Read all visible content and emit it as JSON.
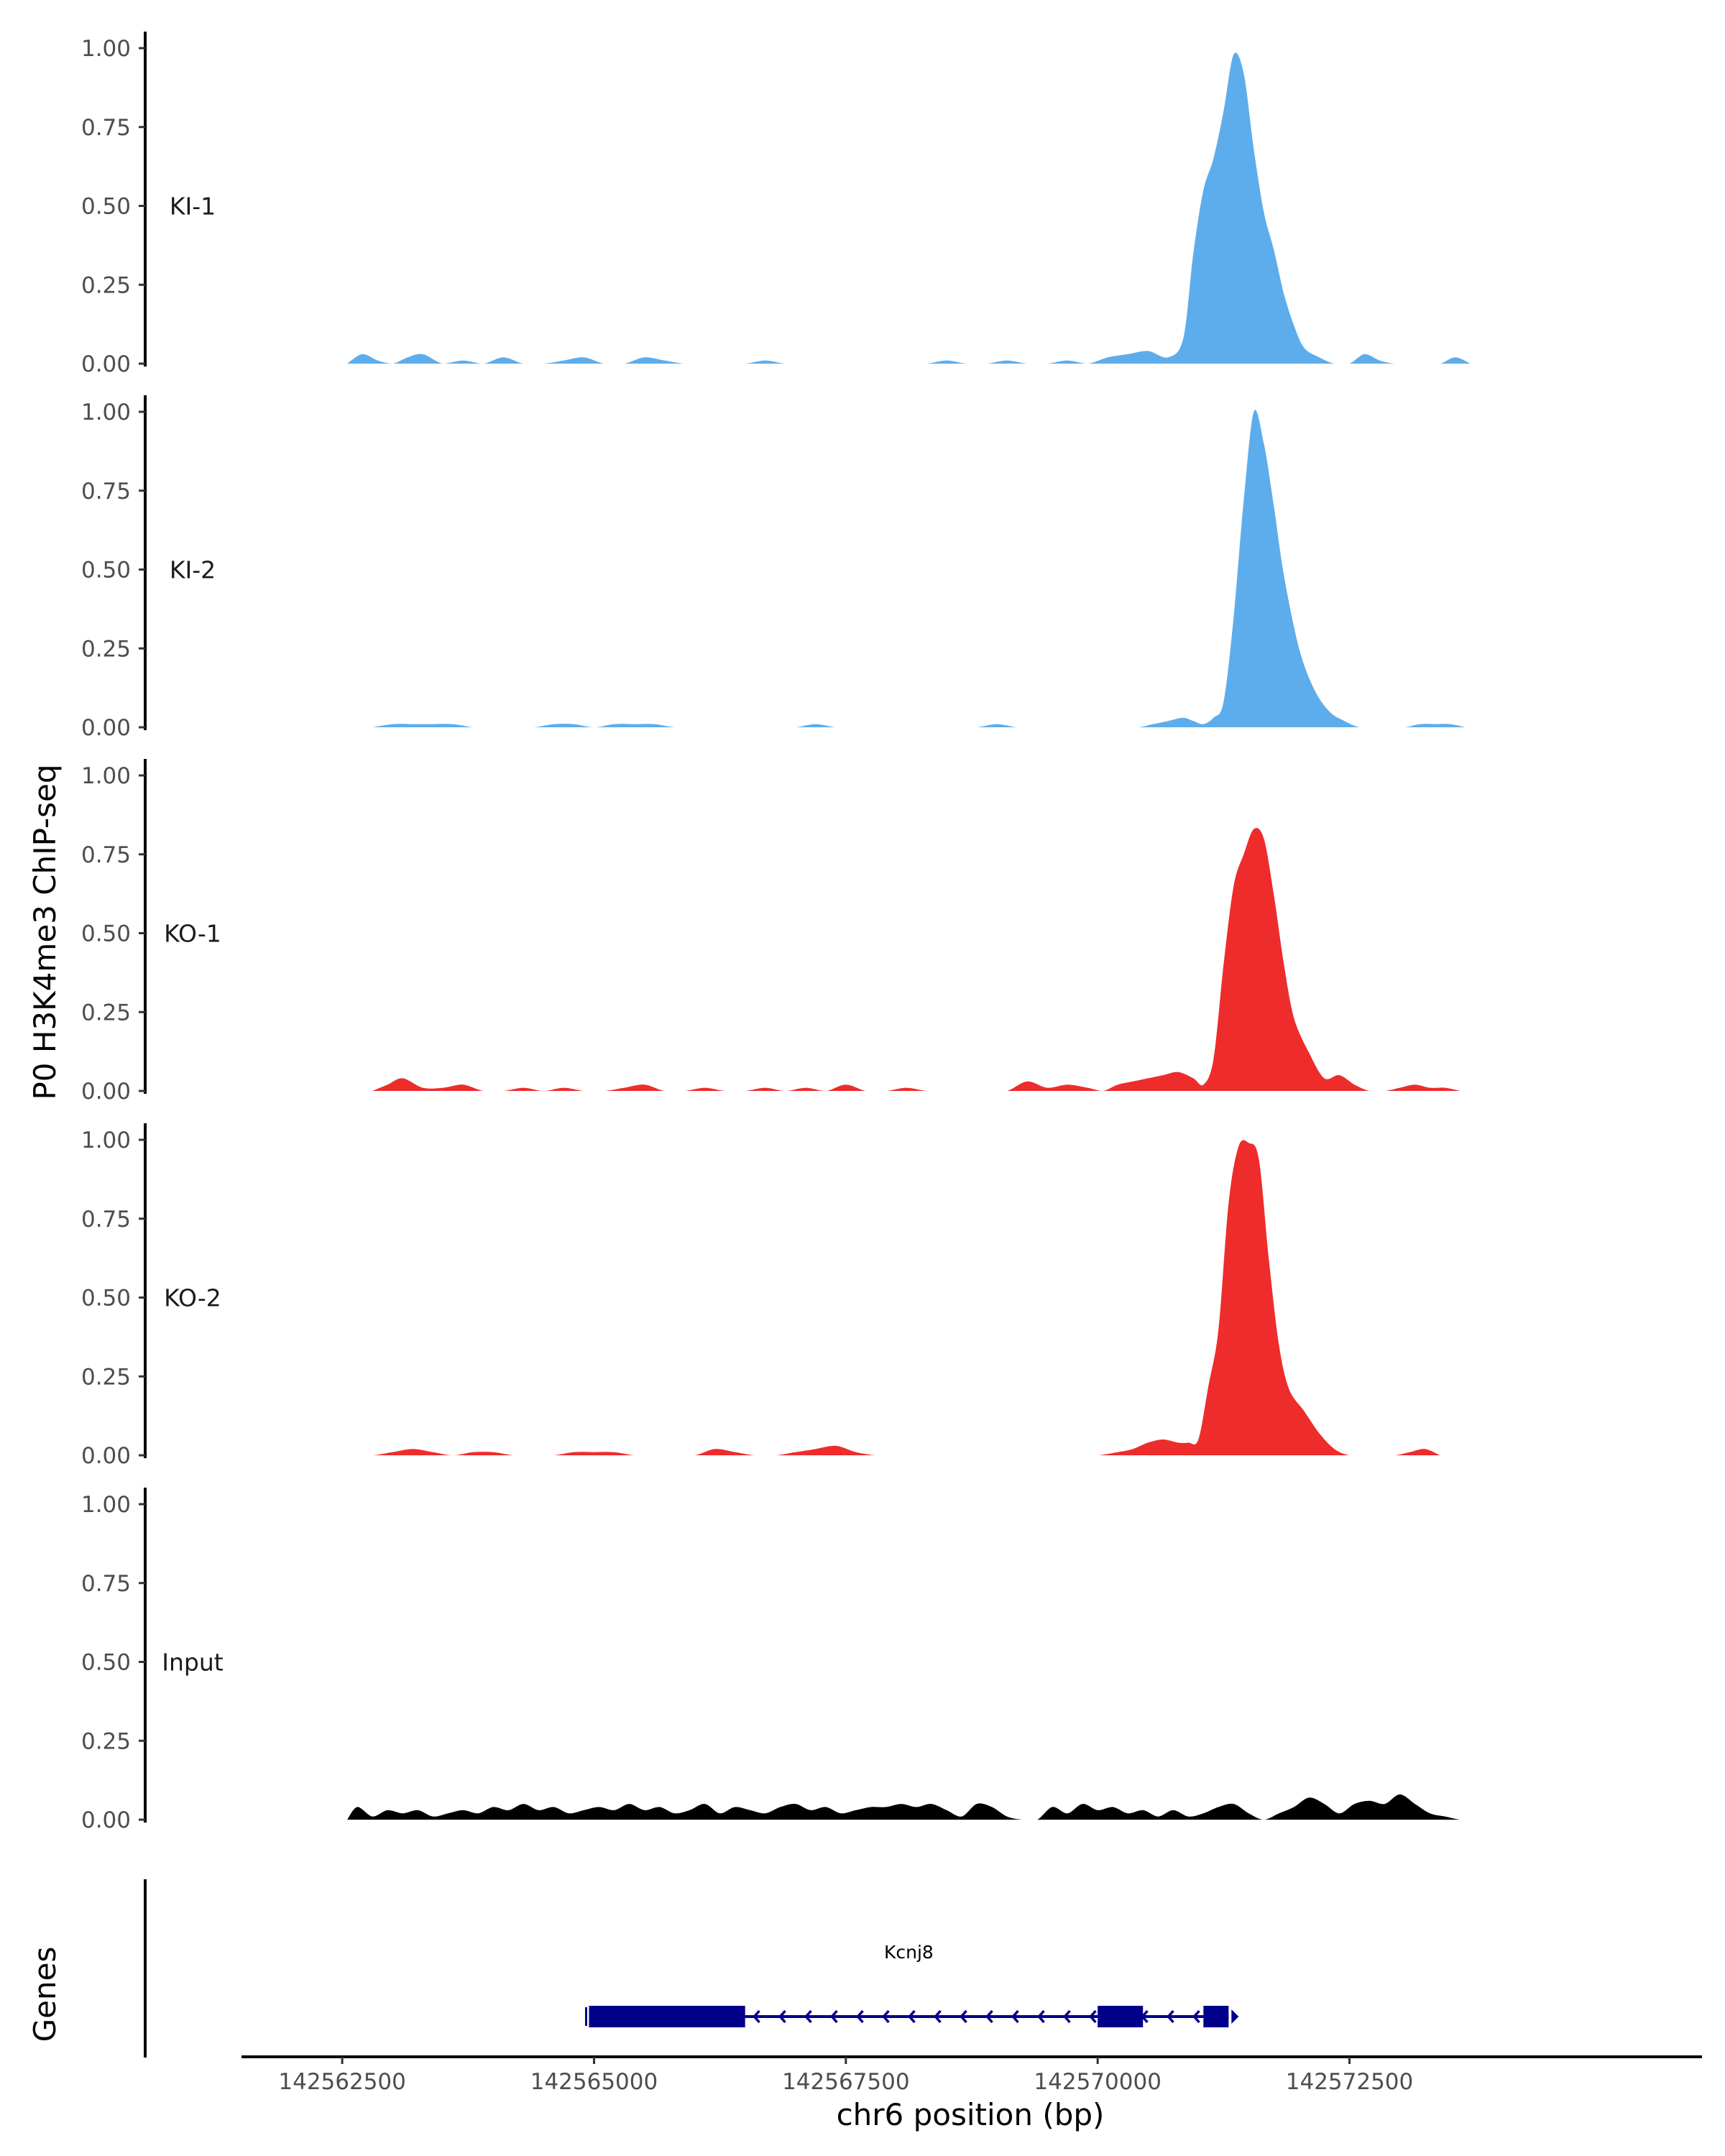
{
  "chart_data": {
    "type": "area",
    "ylabel": "P0 H3K4me3 ChIP-seq",
    "xlabel": "chr6 position (bp)",
    "genes_label": "Genes",
    "xlim": [
      142561500,
      142576000
    ],
    "x_ticks": [
      142562500,
      142565000,
      142567500,
      142570000,
      142572500
    ],
    "y_ticks": [
      "0.00",
      "0.25",
      "0.50",
      "0.75",
      "1.00"
    ],
    "ylim": [
      0,
      1
    ],
    "colors": {
      "KI": "#5DADEC",
      "KO": "#EE2C2C",
      "Input": "#000000",
      "gene": "#00008B"
    },
    "tracks": [
      {
        "name": "KI-1",
        "color": "#5DADEC",
        "x": [
          142562550,
          142562700,
          142562850,
          142563000,
          142563150,
          142563300,
          142563500,
          142563700,
          142563900,
          142564100,
          142564300,
          142564500,
          142564700,
          142564900,
          142565100,
          142565300,
          142565500,
          142565700,
          142565900,
          142566100,
          142566300,
          142566500,
          142566700,
          142566900,
          142567100,
          142567300,
          142567500,
          142567700,
          142567900,
          142568100,
          142568300,
          142568500,
          142568700,
          142568900,
          142569100,
          142569300,
          142569500,
          142569700,
          142569900,
          142570100,
          142570300,
          142570500,
          142570700,
          142570850,
          142570950,
          142571050,
          142571150,
          142571250,
          142571350,
          142571450,
          142571550,
          142571650,
          142571750,
          142571850,
          142571950,
          142572050,
          142572200,
          142572350,
          142572500,
          142572650,
          142572800,
          142572950,
          142573100,
          142573250,
          142573400,
          142573550,
          142573700
        ],
        "y": [
          0.0,
          0.03,
          0.01,
          0.0,
          0.02,
          0.03,
          0.0,
          0.01,
          0.0,
          0.02,
          0.0,
          0.0,
          0.01,
          0.02,
          0.0,
          0.0,
          0.02,
          0.01,
          0.0,
          0.0,
          0.0,
          0.0,
          0.01,
          0.0,
          0.0,
          0.0,
          0.0,
          0.0,
          0.0,
          0.0,
          0.0,
          0.01,
          0.0,
          0.0,
          0.01,
          0.0,
          0.0,
          0.01,
          0.0,
          0.02,
          0.03,
          0.04,
          0.02,
          0.08,
          0.35,
          0.55,
          0.65,
          0.8,
          0.98,
          0.92,
          0.68,
          0.48,
          0.36,
          0.22,
          0.12,
          0.05,
          0.02,
          0.0,
          0.0,
          0.03,
          0.01,
          0.0,
          0.0,
          0.0,
          0.0,
          0.02,
          0.0
        ]
      },
      {
        "name": "KI-2",
        "color": "#5DADEC",
        "x": [
          142562800,
          142563000,
          142563200,
          142563400,
          142563600,
          142563800,
          142564000,
          142564200,
          142564400,
          142564600,
          142564800,
          142565000,
          142565200,
          142565400,
          142565600,
          142565800,
          142566000,
          142566200,
          142566400,
          142566600,
          142566800,
          142567000,
          142567200,
          142567400,
          142567600,
          142567800,
          142568000,
          142568200,
          142568400,
          142568600,
          142568800,
          142569000,
          142569200,
          142569400,
          142569600,
          142569800,
          142570000,
          142570200,
          142570400,
          142570550,
          142570700,
          142570850,
          142570950,
          142571050,
          142571150,
          142571250,
          142571350,
          142571450,
          142571550,
          142571650,
          142571750,
          142571850,
          142572000,
          142572150,
          142572300,
          142572450,
          142572600,
          142572750,
          142572900,
          142573050,
          142573200,
          142573350,
          142573500,
          142573650
        ],
        "y": [
          0.0,
          0.01,
          0.01,
          0.01,
          0.01,
          0.0,
          0.0,
          0.0,
          0.0,
          0.01,
          0.01,
          0.0,
          0.01,
          0.01,
          0.01,
          0.0,
          0.0,
          0.0,
          0.0,
          0.0,
          0.0,
          0.0,
          0.01,
          0.0,
          0.0,
          0.0,
          0.0,
          0.0,
          0.0,
          0.0,
          0.0,
          0.01,
          0.0,
          0.0,
          0.0,
          0.0,
          0.0,
          0.0,
          0.0,
          0.01,
          0.02,
          0.03,
          0.02,
          0.01,
          0.03,
          0.08,
          0.35,
          0.72,
          1.0,
          0.9,
          0.7,
          0.48,
          0.25,
          0.12,
          0.05,
          0.02,
          0.0,
          0.0,
          0.0,
          0.0,
          0.01,
          0.01,
          0.01,
          0.0
        ]
      },
      {
        "name": "KO-1",
        "color": "#EE2C2C",
        "x": [
          142562800,
          142562950,
          142563100,
          142563300,
          142563500,
          142563700,
          142563900,
          142564100,
          142564300,
          142564500,
          142564700,
          142564900,
          142565100,
          142565300,
          142565500,
          142565700,
          142565900,
          142566100,
          142566300,
          142566500,
          142566700,
          142566900,
          142567100,
          142567300,
          142567500,
          142567700,
          142567900,
          142568100,
          142568300,
          142568500,
          142568700,
          142568900,
          142569100,
          142569300,
          142569500,
          142569700,
          142569900,
          142570050,
          142570200,
          142570350,
          142570500,
          142570650,
          142570800,
          142570950,
          142571050,
          142571150,
          142571250,
          142571350,
          142571450,
          142571550,
          142571650,
          142571750,
          142571850,
          142571950,
          142572100,
          142572250,
          142572400,
          142572550,
          142572700,
          142572850,
          142573000,
          142573150,
          142573300,
          142573450,
          142573600
        ],
        "y": [
          0.0,
          0.02,
          0.04,
          0.01,
          0.01,
          0.02,
          0.0,
          0.0,
          0.01,
          0.0,
          0.01,
          0.0,
          0.0,
          0.01,
          0.02,
          0.0,
          0.0,
          0.01,
          0.0,
          0.0,
          0.01,
          0.0,
          0.01,
          0.0,
          0.02,
          0.0,
          0.0,
          0.01,
          0.0,
          0.0,
          0.0,
          0.0,
          0.0,
          0.03,
          0.01,
          0.02,
          0.01,
          0.0,
          0.02,
          0.03,
          0.04,
          0.05,
          0.06,
          0.04,
          0.02,
          0.1,
          0.4,
          0.65,
          0.75,
          0.83,
          0.8,
          0.62,
          0.4,
          0.23,
          0.12,
          0.04,
          0.05,
          0.02,
          0.0,
          0.0,
          0.01,
          0.02,
          0.01,
          0.01,
          0.0
        ]
      },
      {
        "name": "KO-2",
        "color": "#EE2C2C",
        "x": [
          142562600,
          142562800,
          142563000,
          142563200,
          142563400,
          142563600,
          142563800,
          142564000,
          142564200,
          142564400,
          142564600,
          142564800,
          142565000,
          142565200,
          142565400,
          142565600,
          142565800,
          142566000,
          142566200,
          142566400,
          142566600,
          142566800,
          142567000,
          142567200,
          142567400,
          142567600,
          142567800,
          142568000,
          142568200,
          142568400,
          142568600,
          142568800,
          142569000,
          142569200,
          142569400,
          142569600,
          142569800,
          142570000,
          142570200,
          142570350,
          142570500,
          142570650,
          142570800,
          142570900,
          142571000,
          142571100,
          142571200,
          142571300,
          142571400,
          142571500,
          142571600,
          142571700,
          142571800,
          142571900,
          142572050,
          142572200,
          142572350,
          142572500,
          142572650,
          142572800,
          142572950,
          142573100,
          142573250,
          142573400
        ],
        "y": [
          0.0,
          0.0,
          0.01,
          0.02,
          0.01,
          0.0,
          0.01,
          0.01,
          0.0,
          0.0,
          0.0,
          0.01,
          0.01,
          0.01,
          0.0,
          0.0,
          0.0,
          0.0,
          0.02,
          0.01,
          0.0,
          0.0,
          0.01,
          0.02,
          0.03,
          0.01,
          0.0,
          0.0,
          0.0,
          0.0,
          0.0,
          0.0,
          0.0,
          0.0,
          0.0,
          0.0,
          0.0,
          0.0,
          0.01,
          0.02,
          0.04,
          0.05,
          0.04,
          0.04,
          0.05,
          0.22,
          0.4,
          0.8,
          0.98,
          0.99,
          0.94,
          0.62,
          0.35,
          0.21,
          0.14,
          0.07,
          0.02,
          0.0,
          0.0,
          0.0,
          0.0,
          0.01,
          0.02,
          0.0
        ]
      },
      {
        "name": "Input",
        "color": "#000000",
        "x": [
          142562550,
          142562650,
          142562800,
          142562950,
          142563100,
          142563250,
          142563400,
          142563550,
          142563700,
          142563850,
          142564000,
          142564150,
          142564300,
          142564450,
          142564600,
          142564750,
          142564900,
          142565050,
          142565200,
          142565350,
          142565500,
          142565650,
          142565800,
          142565950,
          142566100,
          142566250,
          142566400,
          142566550,
          142566700,
          142566850,
          142567000,
          142567150,
          142567300,
          142567450,
          142567600,
          142567750,
          142567900,
          142568050,
          142568200,
          142568350,
          142568500,
          142568650,
          142568800,
          142568950,
          142569100,
          142569250,
          142569400,
          142569550,
          142569700,
          142569850,
          142570000,
          142570150,
          142570300,
          142570450,
          142570600,
          142570750,
          142570900,
          142571050,
          142571200,
          142571350,
          142571500,
          142571650,
          142571800,
          142571950,
          142572100,
          142572250,
          142572400,
          142572550,
          142572700,
          142572850,
          142573000,
          142573150,
          142573300,
          142573450,
          142573600,
          142573700
        ],
        "y": [
          0.0,
          0.04,
          0.01,
          0.03,
          0.02,
          0.03,
          0.01,
          0.02,
          0.03,
          0.02,
          0.04,
          0.03,
          0.05,
          0.03,
          0.04,
          0.02,
          0.03,
          0.04,
          0.03,
          0.05,
          0.03,
          0.04,
          0.02,
          0.03,
          0.05,
          0.02,
          0.04,
          0.03,
          0.02,
          0.04,
          0.05,
          0.03,
          0.04,
          0.02,
          0.03,
          0.04,
          0.04,
          0.05,
          0.04,
          0.05,
          0.03,
          0.01,
          0.05,
          0.04,
          0.01,
          0.0,
          0.0,
          0.04,
          0.02,
          0.05,
          0.03,
          0.04,
          0.02,
          0.03,
          0.01,
          0.03,
          0.01,
          0.02,
          0.04,
          0.05,
          0.02,
          0.0,
          0.02,
          0.04,
          0.07,
          0.05,
          0.02,
          0.05,
          0.06,
          0.05,
          0.08,
          0.05,
          0.02,
          0.01,
          0.0,
          0.0
        ]
      }
    ],
    "genes": [
      {
        "name": "Kcnj8",
        "strand": "-",
        "start": 142564950,
        "end": 142571300,
        "exons": [
          [
            142564950,
            142566500
          ],
          [
            142570000,
            142570450
          ],
          [
            142571050,
            142571300
          ]
        ]
      }
    ]
  }
}
